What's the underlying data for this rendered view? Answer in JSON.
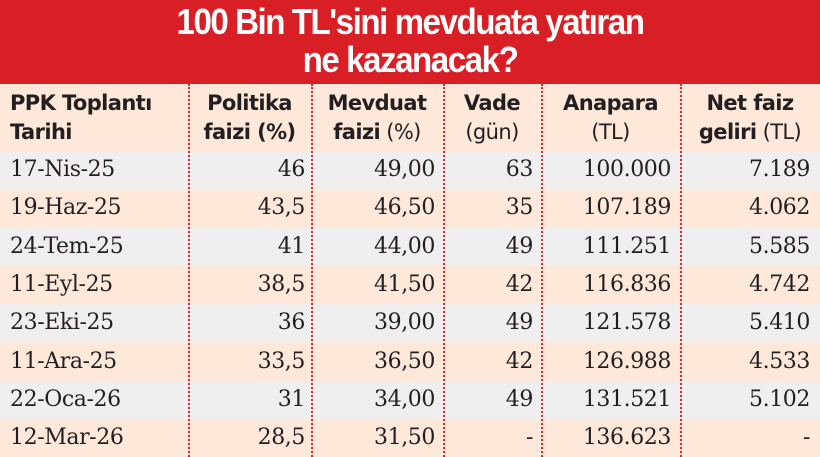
{
  "title": {
    "line1": "100 Bin TL'sini mevduata yatıran",
    "line2": "ne kazanacak?"
  },
  "colors": {
    "banner": "#d81f26",
    "header_bg": "#fde8da",
    "row_gray": "#efefef",
    "row_peach": "#fde8da",
    "divider": "#e0262b"
  },
  "columns": [
    {
      "bold1": "PPK Toplantı",
      "bold2": "Tarihi",
      "light2": ""
    },
    {
      "bold1": "Politika",
      "bold2": "faizi (%)",
      "light2": ""
    },
    {
      "bold1": "Mevduat",
      "bold2": "faizi",
      "light2": " (%)"
    },
    {
      "bold1": "Vade",
      "bold2": "",
      "light2": "(gün)"
    },
    {
      "bold1": "Anapara",
      "bold2": "",
      "light2": "(TL)"
    },
    {
      "bold1": "Net faiz",
      "bold2": "geliri",
      "light2": " (TL)"
    }
  ],
  "rows": [
    {
      "date": "17-Nis-25",
      "policy": "46",
      "deposit": "49,00",
      "term": "63",
      "principal": "100.000",
      "income": "7.189"
    },
    {
      "date": "19-Haz-25",
      "policy": "43,5",
      "deposit": "46,50",
      "term": "35",
      "principal": "107.189",
      "income": "4.062"
    },
    {
      "date": "24-Tem-25",
      "policy": "41",
      "deposit": "44,00",
      "term": "49",
      "principal": "111.251",
      "income": "5.585"
    },
    {
      "date": "11-Eyl-25",
      "policy": "38,5",
      "deposit": "41,50",
      "term": "42",
      "principal": "116.836",
      "income": "4.742"
    },
    {
      "date": "23-Eki-25",
      "policy": "36",
      "deposit": "39,00",
      "term": "49",
      "principal": "121.578",
      "income": "5.410"
    },
    {
      "date": "11-Ara-25",
      "policy": "33,5",
      "deposit": "36,50",
      "term": "42",
      "principal": "126.988",
      "income": "4.533"
    },
    {
      "date": "22-Oca-26",
      "policy": "31",
      "deposit": "34,00",
      "term": "49",
      "principal": "131.521",
      "income": "5.102"
    },
    {
      "date": "12-Mar-26",
      "policy": "28,5",
      "deposit": "31,50",
      "term": "-",
      "principal": "136.623",
      "income": "-"
    }
  ]
}
